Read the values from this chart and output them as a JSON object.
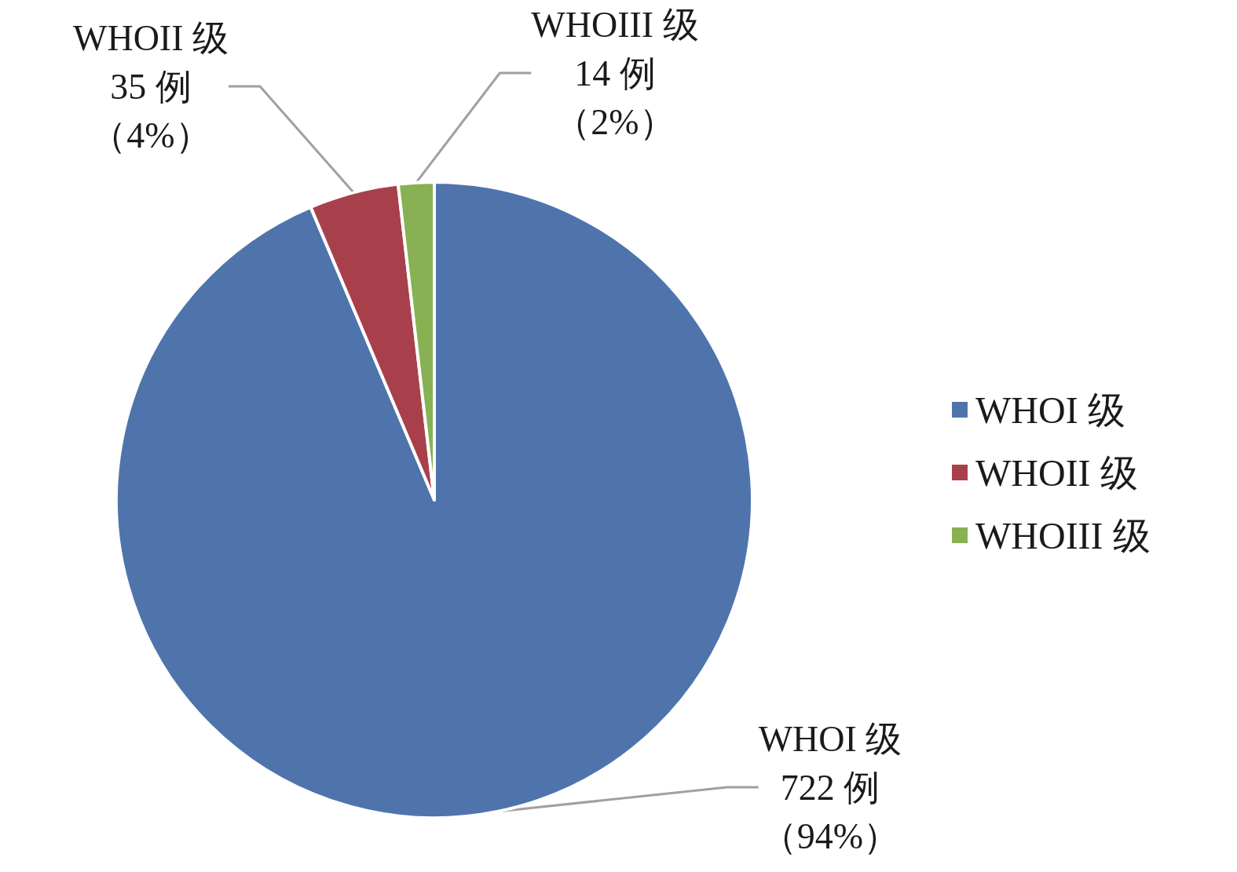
{
  "chart_data": {
    "type": "pie",
    "categories": [
      "WHOI 级",
      "WHOII 级",
      "WHOIII 级"
    ],
    "values": [
      722,
      35,
      14
    ],
    "colors": [
      "#4f74ac",
      "#a8404c",
      "#88b153"
    ],
    "value_labels": [
      "722 例（94%）",
      "35 例（4%）",
      "14 例（2%）"
    ],
    "legend": "right"
  }
}
